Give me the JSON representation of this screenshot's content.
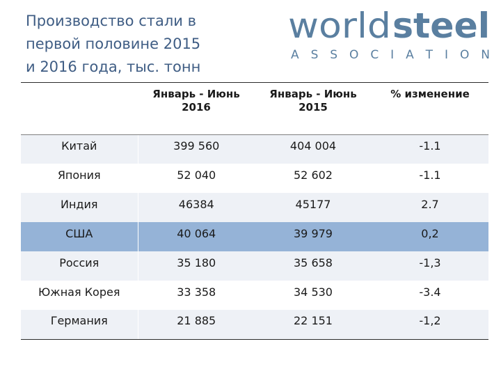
{
  "title": {
    "line1": "Производство стали в",
    "line2": "первой половине 2015",
    "line3": "и 2016 года, тыс. тонн"
  },
  "logo": {
    "word_light": "world",
    "word_bold": "steel",
    "subtitle": "A S S O C I A T I O N",
    "color": "#5a7fa0"
  },
  "table": {
    "headers": [
      "",
      "Январь - Июнь 2016",
      "Январь - Июнь 2015",
      "% изменение"
    ],
    "rows": [
      [
        "Китай",
        "399 560",
        "404 004",
        "-1.1"
      ],
      [
        "Япония",
        "52 040",
        "52 602",
        "-1.1"
      ],
      [
        "Индия",
        "46384",
        "45177",
        "2.7"
      ],
      [
        "США",
        "40 064",
        "39 979",
        "0,2"
      ],
      [
        "Россия",
        "35 180",
        "35 658",
        "-1,3"
      ],
      [
        "Южная Корея",
        "33 358",
        "34 530",
        "-3.4"
      ],
      [
        "Германия",
        "21 885",
        "22 151",
        "-1,2"
      ]
    ],
    "highlight_row": 3,
    "highlight_color": "#95b3d7"
  }
}
